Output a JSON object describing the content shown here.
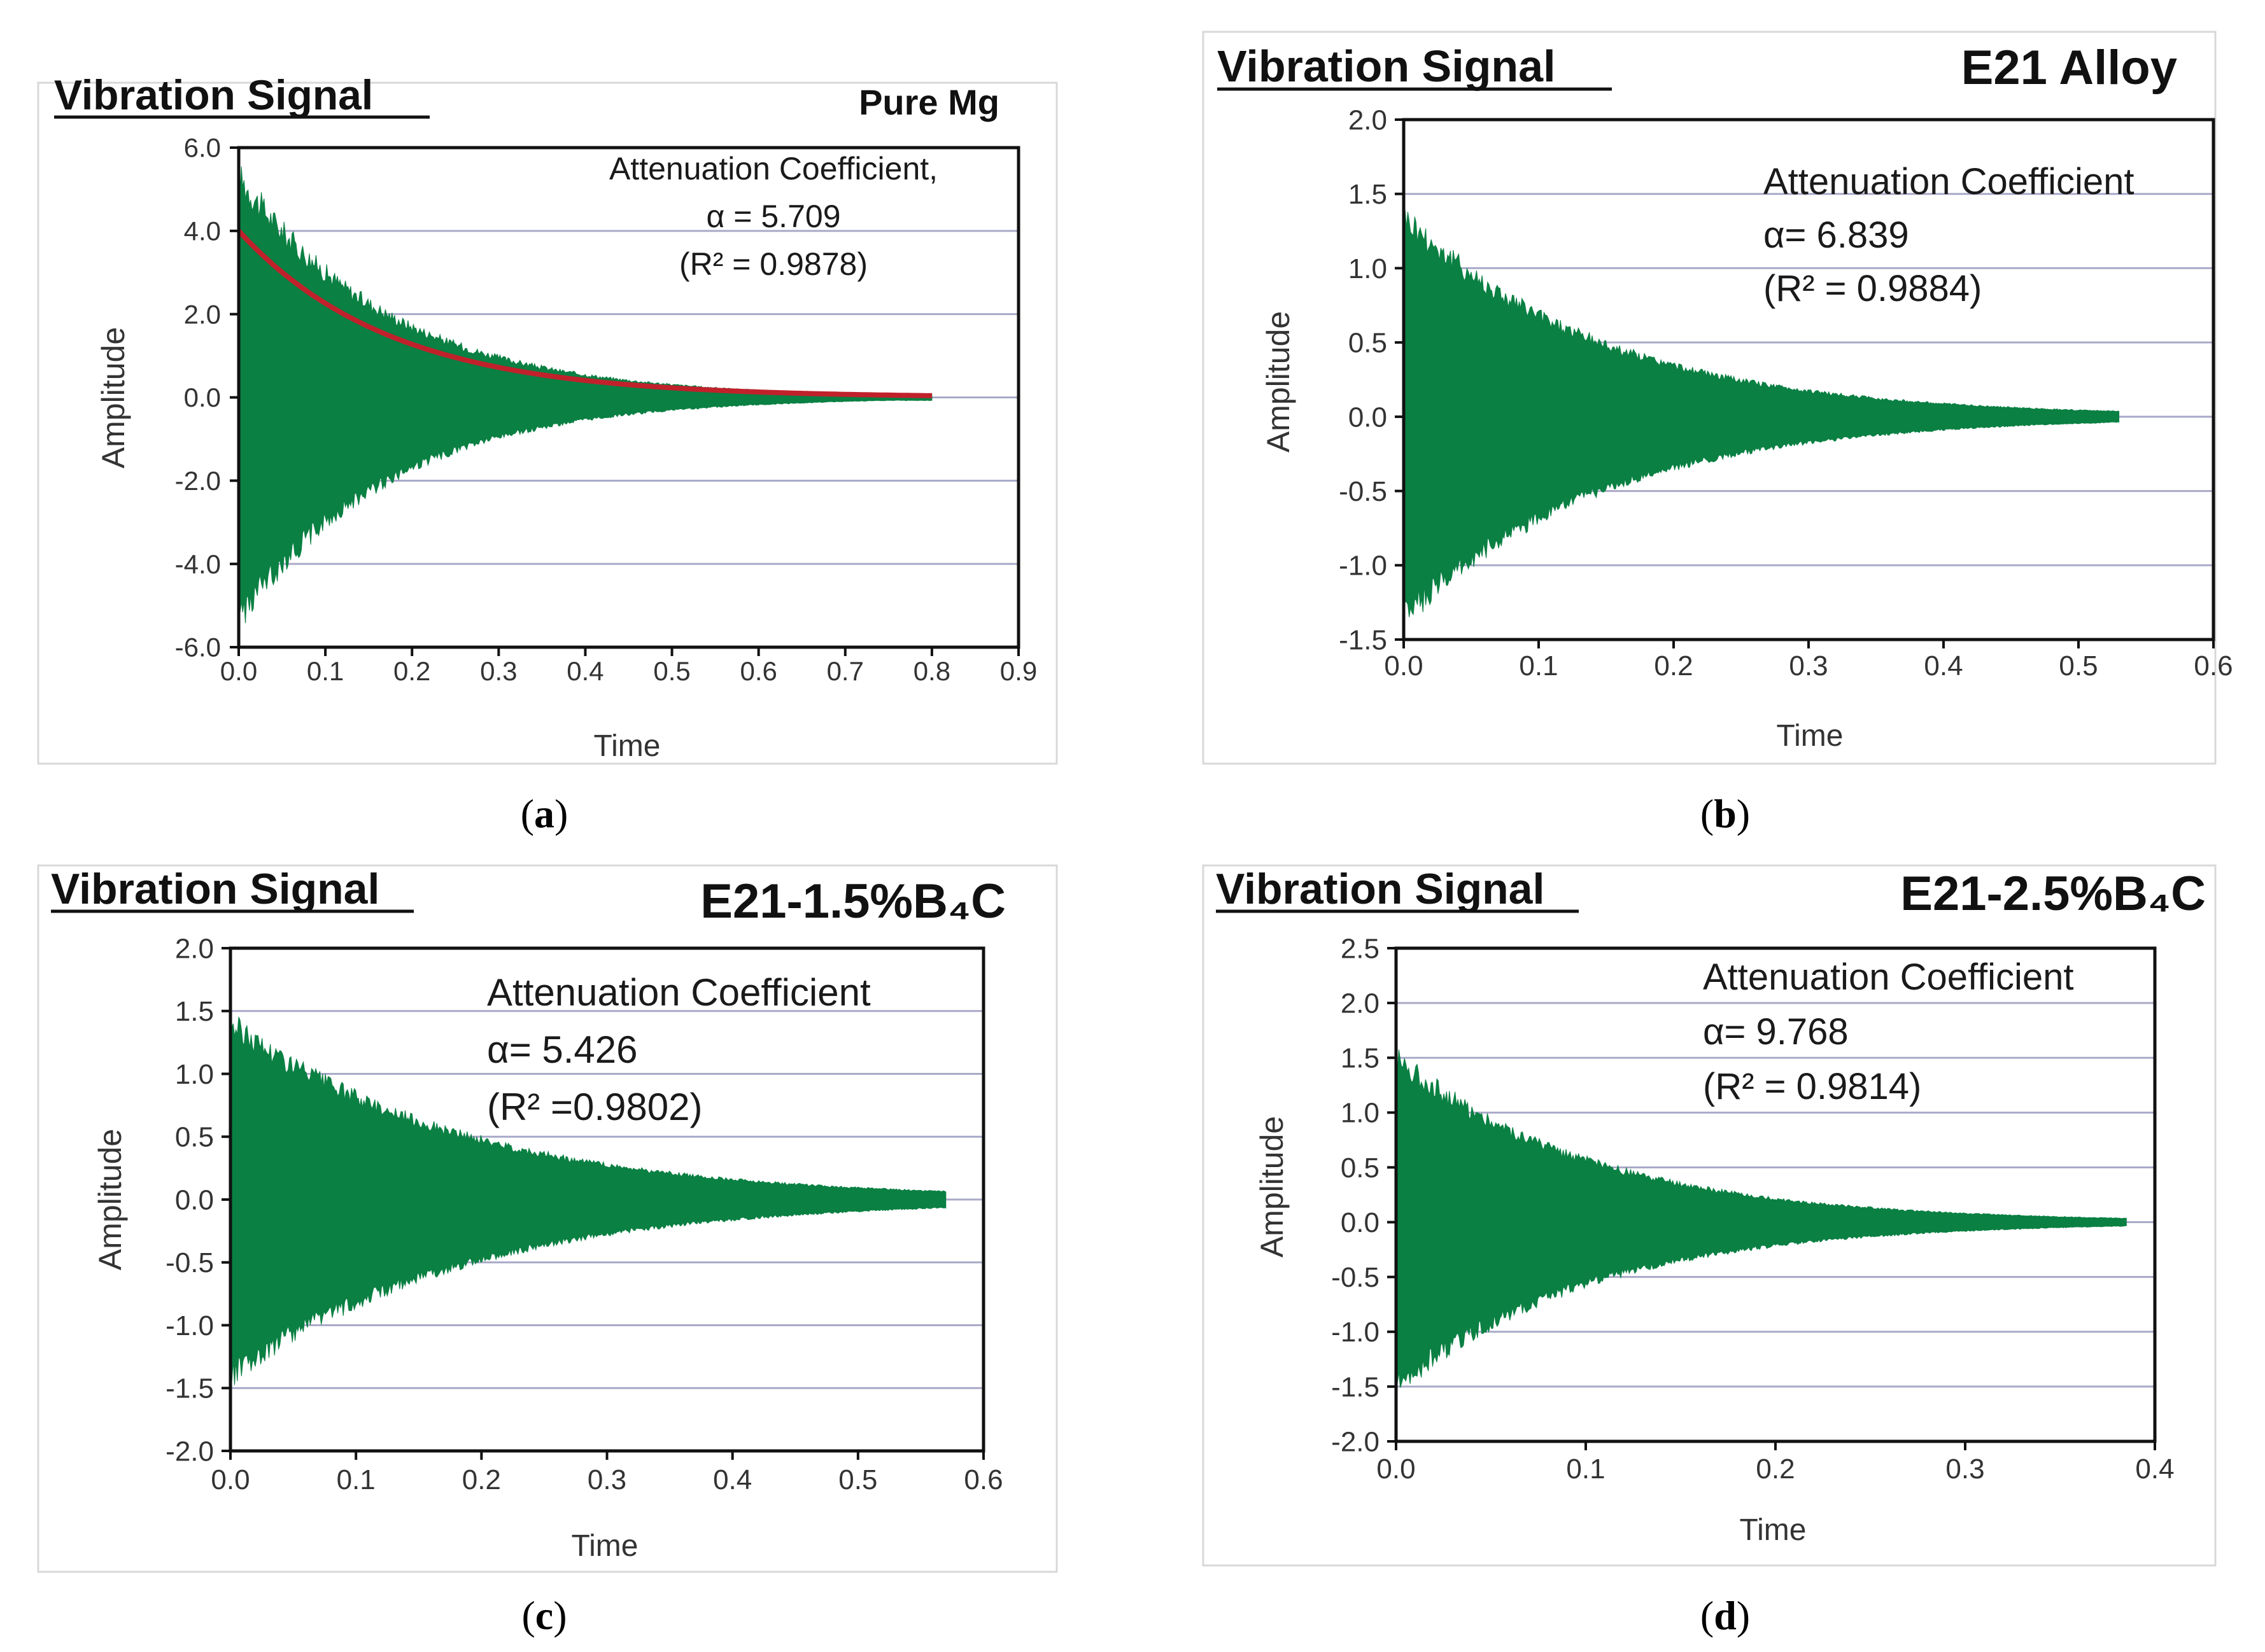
{
  "colors": {
    "signal": "#0a8043",
    "fit": "#c0212b",
    "grid": "#a9a9c8",
    "frame": "#111111"
  },
  "chart_data": [
    {
      "id": "a",
      "type": "area",
      "caption": "a",
      "title": "Vibration Signal",
      "material": "Pure Mg",
      "annotation": [
        "Attenuation Coefficient,",
        "α = 5.709",
        "(R² = 0.9878)"
      ],
      "xlabel": "Time",
      "ylabel": "Amplitude",
      "xlim": [
        0,
        0.9
      ],
      "ylim": [
        -6,
        6
      ],
      "xticks": [
        "0.0",
        "0.1",
        "0.2",
        "0.3",
        "0.4",
        "0.5",
        "0.6",
        "0.7",
        "0.8",
        "0.9"
      ],
      "yticks": [
        "6.0",
        "4.0",
        "2.0",
        "0.0",
        "-2.0",
        "-4.0",
        "-6.0"
      ],
      "x_end": 0.8,
      "envelope_start": 5.3,
      "decay_rate": 5.709,
      "fit": {
        "start": 4.0,
        "rate": 5.709
      }
    },
    {
      "id": "b",
      "type": "area",
      "caption": "b",
      "title": "Vibration Signal",
      "material": "E21 Alloy",
      "annotation": [
        "Attenuation Coefficient",
        "α= 6.839",
        "(R² = 0.9884)"
      ],
      "xlabel": "Time",
      "ylabel": "Amplitude",
      "xlim": [
        0,
        0.6
      ],
      "ylim": [
        -1.5,
        2.0
      ],
      "xticks": [
        "0.0",
        "0.1",
        "0.2",
        "0.3",
        "0.4",
        "0.5",
        "0.6"
      ],
      "yticks": [
        "2.0",
        "1.5",
        "1.0",
        "0.5",
        "0.0",
        "-0.5",
        "-1.0",
        "-1.5"
      ],
      "x_end": 0.53,
      "envelope_start": 1.35,
      "decay_rate": 6.839
    },
    {
      "id": "c",
      "type": "area",
      "caption": "c",
      "title": "Vibration Signal",
      "material": "E21-1.5%B₄C",
      "annotation": [
        "Attenuation Coefficient",
        "α= 5.426",
        "(R² =0.9802)"
      ],
      "xlabel": "Time",
      "ylabel": "Amplitude",
      "xlim": [
        0,
        0.6
      ],
      "ylim": [
        -2.0,
        2.0
      ],
      "xticks": [
        "0.0",
        "0.1",
        "0.2",
        "0.3",
        "0.4",
        "0.5",
        "0.6"
      ],
      "yticks": [
        "2.0",
        "1.5",
        "1.0",
        "0.5",
        "0.0",
        "-0.5",
        "-1.0",
        "-1.5",
        "-2.0"
      ],
      "x_end": 0.57,
      "envelope_start": 1.4,
      "decay_rate": 5.426
    },
    {
      "id": "d",
      "type": "area",
      "caption": "d",
      "title": "Vibration Signal",
      "material": "E21-2.5%B₄C",
      "annotation": [
        "Attenuation Coefficient",
        "α= 9.768",
        "(R² = 0.9814)"
      ],
      "xlabel": "Time",
      "ylabel": "Amplitude",
      "xlim": [
        0,
        0.4
      ],
      "ylim": [
        -2.0,
        2.5
      ],
      "xticks": [
        "0.0",
        "0.1",
        "0.2",
        "0.3",
        "0.4"
      ],
      "yticks": [
        "2.5",
        "2.0",
        "1.5",
        "1.0",
        "0.5",
        "0.0",
        "-0.5",
        "-1.0",
        "-1.5",
        "-2.0"
      ],
      "x_end": 0.385,
      "envelope_start": 1.5,
      "decay_rate": 9.768
    }
  ]
}
